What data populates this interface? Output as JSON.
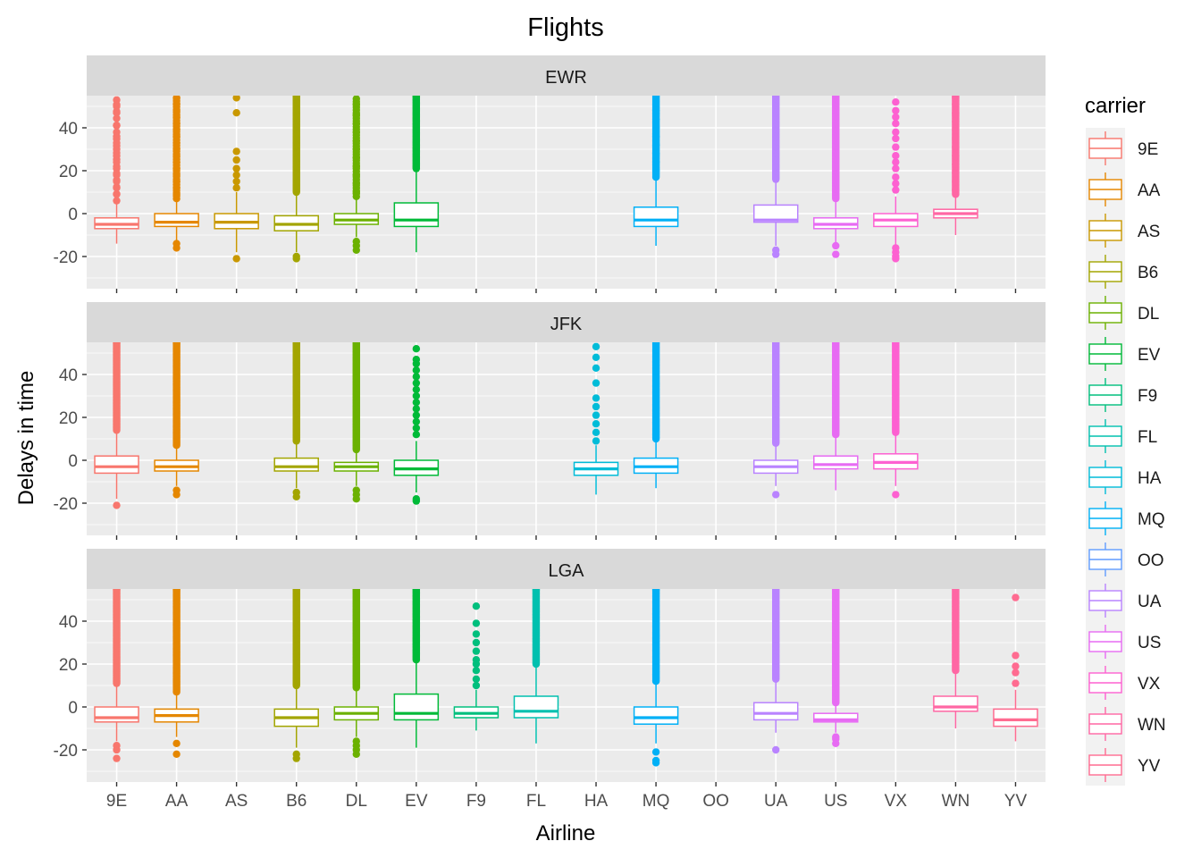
{
  "chart_data": {
    "type": "boxplot",
    "title": "Flights",
    "xlabel": "Airline",
    "ylabel": "Delays in time",
    "ylim": [
      -35,
      55
    ],
    "yticks": [
      -20,
      0,
      20,
      40
    ],
    "grid": true,
    "legend_title": "carrier",
    "legend_position": "right",
    "categories": [
      "9E",
      "AA",
      "AS",
      "B6",
      "DL",
      "EV",
      "F9",
      "FL",
      "HA",
      "MQ",
      "OO",
      "UA",
      "US",
      "VX",
      "WN",
      "YV"
    ],
    "colors": {
      "9E": "#F8766D",
      "AA": "#E58700",
      "AS": "#C99800",
      "B6": "#A3A500",
      "DL": "#6BB100",
      "EV": "#00BA38",
      "F9": "#00BF7D",
      "FL": "#00C0AF",
      "HA": "#00BCD8",
      "MQ": "#00B0F6",
      "OO": "#619CFF",
      "UA": "#B983FF",
      "US": "#E76BF3",
      "VX": "#FD61D1",
      "WN": "#FF67A4",
      "YV": "#FF6C91"
    },
    "panels": [
      {
        "label": "EWR",
        "boxes": [
          {
            "carrier": "9E",
            "whisker_low": -14,
            "q1": -7,
            "median": -5,
            "q3": -2,
            "whisker_high": 6,
            "outliers": [
              9,
              12,
              15,
              18,
              21,
              24,
              27,
              30,
              33,
              36,
              41,
              47,
              50,
              53
            ]
          },
          {
            "carrier": "AA",
            "whisker_low": -13,
            "q1": -6,
            "median": -4,
            "q3": 0,
            "whisker_high": 7,
            "outliers": [
              -16,
              -14,
              9,
              12,
              15,
              18,
              21,
              24,
              27,
              30,
              33,
              36,
              39,
              42,
              45,
              48,
              51,
              54
            ]
          },
          {
            "carrier": "AS",
            "whisker_low": -18,
            "q1": -7,
            "median": -4,
            "q3": 0,
            "whisker_high": 10,
            "outliers": [
              -21,
              12,
              15,
              18,
              21,
              25,
              29,
              47,
              54
            ]
          },
          {
            "carrier": "B6",
            "whisker_low": -18,
            "q1": -8,
            "median": -5,
            "q3": -1,
            "whisker_high": 10,
            "outliers": [
              -21,
              -20
            ]
          },
          {
            "carrier": "DL",
            "whisker_low": -11,
            "q1": -5,
            "median": -3,
            "q3": 0,
            "whisker_high": 8,
            "outliers": [
              -17,
              -15,
              -13,
              10,
              14,
              18,
              22,
              26,
              30,
              34,
              38,
              42,
              46,
              51
            ]
          },
          {
            "carrier": "EV",
            "whisker_low": -18,
            "q1": -6,
            "median": -3,
            "q3": 5,
            "whisker_high": 21,
            "outliers": []
          },
          {
            "carrier": "MQ",
            "whisker_low": -15,
            "q1": -6,
            "median": -3,
            "q3": 3,
            "whisker_high": 17,
            "outliers": [
              20,
              24,
              28,
              32,
              36,
              40,
              44,
              48
            ]
          },
          {
            "carrier": "UA",
            "whisker_low": -15,
            "q1": -4,
            "median": -3,
            "q3": 4,
            "whisker_high": 16,
            "outliers": [
              -19,
              -17
            ]
          },
          {
            "carrier": "US",
            "whisker_low": -14,
            "q1": -7,
            "median": -5,
            "q3": -2,
            "whisker_high": 7,
            "outliers": [
              -19,
              -15
            ]
          },
          {
            "carrier": "VX",
            "whisker_low": -15,
            "q1": -6,
            "median": -3,
            "q3": 0,
            "whisker_high": 8,
            "outliers": [
              -21,
              -20,
              -18,
              -16,
              11,
              14,
              17,
              21,
              24,
              27,
              31,
              35,
              38,
              42,
              45,
              48,
              52
            ]
          },
          {
            "carrier": "WN",
            "whisker_low": -10,
            "q1": -2,
            "median": 0,
            "q3": 2,
            "whisker_high": 9,
            "outliers": [
              11,
              15,
              19,
              23,
              27,
              31,
              35,
              39,
              43,
              47,
              51,
              54
            ]
          }
        ]
      },
      {
        "label": "JFK",
        "boxes": [
          {
            "carrier": "9E",
            "whisker_low": -18,
            "q1": -6,
            "median": -3,
            "q3": 2,
            "whisker_high": 14,
            "outliers": [
              -21
            ]
          },
          {
            "carrier": "AA",
            "whisker_low": -12,
            "q1": -5,
            "median": -3,
            "q3": 0,
            "whisker_high": 7,
            "outliers": [
              -16,
              -14
            ]
          },
          {
            "carrier": "B6",
            "whisker_low": -13,
            "q1": -5,
            "median": -3,
            "q3": 1,
            "whisker_high": 9,
            "outliers": [
              -17,
              -15
            ]
          },
          {
            "carrier": "DL",
            "whisker_low": -12,
            "q1": -5,
            "median": -3,
            "q3": -1,
            "whisker_high": 5,
            "outliers": [
              -18,
              -16,
              -14
            ]
          },
          {
            "carrier": "EV",
            "whisker_low": -15,
            "q1": -7,
            "median": -4,
            "q3": 0,
            "whisker_high": 9,
            "outliers": [
              -19,
              -18,
              12,
              15,
              18,
              21,
              24,
              27,
              30,
              33,
              36,
              39,
              42,
              45,
              47,
              52
            ]
          },
          {
            "carrier": "HA",
            "whisker_low": -16,
            "q1": -7,
            "median": -4,
            "q3": -1,
            "whisker_high": 7,
            "outliers": [
              9,
              13,
              17,
              21,
              25,
              29,
              36,
              43,
              48,
              53
            ]
          },
          {
            "carrier": "MQ",
            "whisker_low": -13,
            "q1": -6,
            "median": -3,
            "q3": 1,
            "whisker_high": 10,
            "outliers": []
          },
          {
            "carrier": "UA",
            "whisker_low": -12,
            "q1": -6,
            "median": -3,
            "q3": 0,
            "whisker_high": 8,
            "outliers": [
              -16
            ]
          },
          {
            "carrier": "US",
            "whisker_low": -14,
            "q1": -4,
            "median": -2,
            "q3": 2,
            "whisker_high": 12,
            "outliers": []
          },
          {
            "carrier": "VX",
            "whisker_low": -12,
            "q1": -4,
            "median": -1,
            "q3": 3,
            "whisker_high": 13,
            "outliers": [
              -16
            ]
          }
        ]
      },
      {
        "label": "LGA",
        "boxes": [
          {
            "carrier": "9E",
            "whisker_low": -16,
            "q1": -7,
            "median": -5,
            "q3": 0,
            "whisker_high": 11,
            "outliers": [
              -24,
              -20,
              -18
            ]
          },
          {
            "carrier": "AA",
            "whisker_low": -14,
            "q1": -7,
            "median": -4,
            "q3": -1,
            "whisker_high": 7,
            "outliers": [
              -22,
              -17
            ]
          },
          {
            "carrier": "B6",
            "whisker_low": -19,
            "q1": -9,
            "median": -5,
            "q3": -1,
            "whisker_high": 10,
            "outliers": [
              -24,
              -22
            ]
          },
          {
            "carrier": "DL",
            "whisker_low": -14,
            "q1": -6,
            "median": -3,
            "q3": 0,
            "whisker_high": 9,
            "outliers": [
              -22,
              -20,
              -18,
              -16
            ]
          },
          {
            "carrier": "EV",
            "whisker_low": -19,
            "q1": -6,
            "median": -3,
            "q3": 6,
            "whisker_high": 22,
            "outliers": []
          },
          {
            "carrier": "F9",
            "whisker_low": -11,
            "q1": -5,
            "median": -3,
            "q3": 0,
            "whisker_high": 8,
            "outliers": [
              10,
              13,
              17,
              20,
              22,
              26,
              30,
              34,
              39,
              47
            ]
          },
          {
            "carrier": "FL",
            "whisker_low": -17,
            "q1": -5,
            "median": -2,
            "q3": 5,
            "whisker_high": 20,
            "outliers": []
          },
          {
            "carrier": "MQ",
            "whisker_low": -17,
            "q1": -8,
            "median": -5,
            "q3": 0,
            "whisker_high": 12,
            "outliers": [
              -26,
              -25,
              -21
            ]
          },
          {
            "carrier": "UA",
            "whisker_low": -12,
            "q1": -6,
            "median": -3,
            "q3": 2,
            "whisker_high": 13,
            "outliers": [
              -20
            ]
          },
          {
            "carrier": "US",
            "whisker_low": -12,
            "q1": -7,
            "median": -6,
            "q3": -3,
            "whisker_high": 2,
            "outliers": [
              -17,
              -15,
              -14
            ]
          },
          {
            "carrier": "WN",
            "whisker_low": -10,
            "q1": -2,
            "median": 0,
            "q3": 5,
            "whisker_high": 17,
            "outliers": []
          },
          {
            "carrier": "YV",
            "whisker_low": -16,
            "q1": -9,
            "median": -6,
            "q3": -1,
            "whisker_high": 8,
            "outliers": [
              11,
              16,
              19,
              24,
              51
            ]
          }
        ]
      }
    ],
    "dense_outliers": {
      "EWR": [
        {
          "carrier": "9E",
          "from": 6,
          "to": 54,
          "density": "sparse"
        },
        {
          "carrier": "AA",
          "from": 7,
          "to": 54,
          "density": "medium"
        },
        {
          "carrier": "B6",
          "from": 10,
          "to": 56,
          "density": "dense"
        },
        {
          "carrier": "DL",
          "from": 8,
          "to": 54,
          "density": "medium"
        },
        {
          "carrier": "EV",
          "from": 21,
          "to": 56,
          "density": "dense"
        },
        {
          "carrier": "MQ",
          "from": 17,
          "to": 56,
          "density": "dense"
        },
        {
          "carrier": "UA",
          "from": 16,
          "to": 56,
          "density": "dense"
        },
        {
          "carrier": "US",
          "from": 7,
          "to": 56,
          "density": "dense"
        },
        {
          "carrier": "WN",
          "from": 9,
          "to": 56,
          "density": "dense"
        }
      ],
      "JFK": [
        {
          "carrier": "9E",
          "from": 14,
          "to": 56,
          "density": "dense"
        },
        {
          "carrier": "AA",
          "from": 7,
          "to": 56,
          "density": "dense"
        },
        {
          "carrier": "B6",
          "from": 9,
          "to": 56,
          "density": "dense"
        },
        {
          "carrier": "DL",
          "from": 5,
          "to": 56,
          "density": "dense"
        },
        {
          "carrier": "MQ",
          "from": 10,
          "to": 56,
          "density": "dense"
        },
        {
          "carrier": "UA",
          "from": 8,
          "to": 56,
          "density": "dense"
        },
        {
          "carrier": "US",
          "from": 12,
          "to": 56,
          "density": "dense"
        },
        {
          "carrier": "VX",
          "from": 13,
          "to": 56,
          "density": "dense"
        }
      ],
      "LGA": [
        {
          "carrier": "9E",
          "from": 11,
          "to": 56,
          "density": "dense"
        },
        {
          "carrier": "AA",
          "from": 7,
          "to": 56,
          "density": "dense"
        },
        {
          "carrier": "B6",
          "from": 10,
          "to": 56,
          "density": "dense"
        },
        {
          "carrier": "DL",
          "from": 9,
          "to": 56,
          "density": "dense"
        },
        {
          "carrier": "EV",
          "from": 22,
          "to": 56,
          "density": "dense"
        },
        {
          "carrier": "FL",
          "from": 20,
          "to": 56,
          "density": "dense"
        },
        {
          "carrier": "MQ",
          "from": 12,
          "to": 56,
          "density": "dense"
        },
        {
          "carrier": "UA",
          "from": 13,
          "to": 56,
          "density": "dense"
        },
        {
          "carrier": "US",
          "from": 2,
          "to": 56,
          "density": "dense"
        },
        {
          "carrier": "WN",
          "from": 17,
          "to": 56,
          "density": "dense"
        }
      ]
    }
  }
}
